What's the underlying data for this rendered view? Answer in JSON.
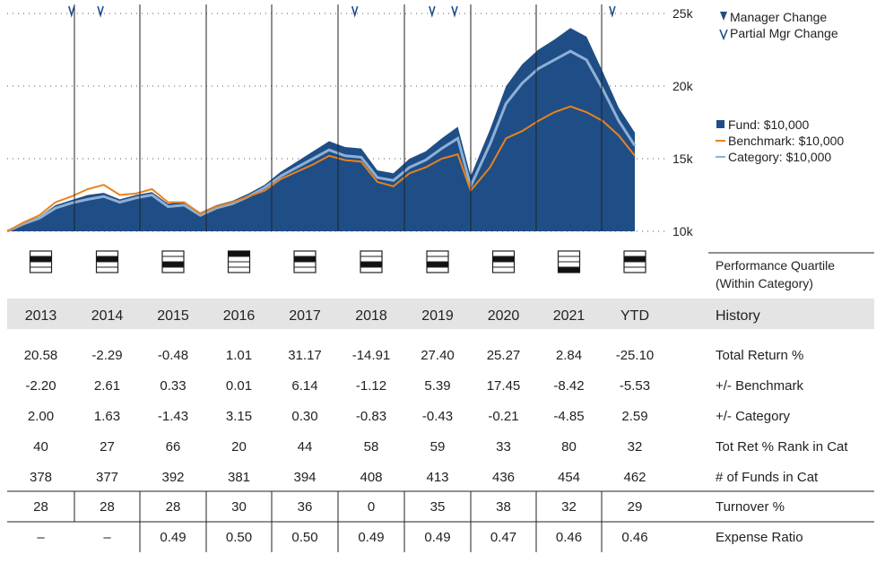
{
  "chart_data": {
    "type": "area",
    "yaxis": {
      "ticks": [
        "25k",
        "20k",
        "15k",
        "10k"
      ],
      "values": [
        25000,
        20000,
        15000,
        10000
      ],
      "ylim": [
        10000,
        25000
      ],
      "gridlines": "dotted"
    },
    "x_range": [
      2013.0,
      2022.75
    ],
    "legend": {
      "manager_change": "Manager Change",
      "partial_mgr_change": "Partial Mgr Change",
      "fund": "Fund: $10,000",
      "benchmark": "Benchmark: $10,000",
      "category": "Category: $10,000"
    },
    "colors": {
      "fund": "#1f4e86",
      "category": "#8eb0d6",
      "benchmark": "#e8821e",
      "grid": "#555555",
      "header_band": "#e4e4e4"
    },
    "partial_manager_changes": [
      2014.0,
      2014.45,
      2018.4,
      2019.6,
      2019.95,
      2022.4
    ],
    "series": [
      {
        "name": "Fund",
        "x": [
          2013.0,
          2013.25,
          2013.5,
          2013.75,
          2014.0,
          2014.25,
          2014.5,
          2014.75,
          2015.0,
          2015.25,
          2015.5,
          2015.75,
          2016.0,
          2016.25,
          2016.5,
          2016.75,
          2017.0,
          2017.25,
          2017.5,
          2017.75,
          2018.0,
          2018.25,
          2018.5,
          2018.75,
          2019.0,
          2019.25,
          2019.5,
          2019.75,
          2020.0,
          2020.2,
          2020.5,
          2020.75,
          2021.0,
          2021.25,
          2021.5,
          2021.75,
          2022.0,
          2022.25,
          2022.5,
          2022.75
        ],
        "values": [
          10000,
          10600,
          11000,
          11800,
          12150,
          12500,
          12650,
          12200,
          12500,
          12700,
          11900,
          12050,
          11300,
          11800,
          12100,
          12600,
          13200,
          14100,
          14800,
          15500,
          16200,
          15800,
          15700,
          14200,
          14000,
          15000,
          15500,
          16400,
          17200,
          13800,
          17000,
          20000,
          21500,
          22500,
          23200,
          24000,
          23400,
          21000,
          18500,
          16800
        ]
      },
      {
        "name": "Category",
        "x": [
          2013.0,
          2013.25,
          2013.5,
          2013.75,
          2014.0,
          2014.25,
          2014.5,
          2014.75,
          2015.0,
          2015.25,
          2015.5,
          2015.75,
          2016.0,
          2016.25,
          2016.5,
          2016.75,
          2017.0,
          2017.25,
          2017.5,
          2017.75,
          2018.0,
          2018.25,
          2018.5,
          2018.75,
          2019.0,
          2019.25,
          2019.5,
          2019.75,
          2020.0,
          2020.2,
          2020.5,
          2020.75,
          2021.0,
          2021.25,
          2021.5,
          2021.75,
          2022.0,
          2022.25,
          2022.5,
          2022.75
        ],
        "values": [
          10000,
          10500,
          10900,
          11600,
          11950,
          12200,
          12400,
          12000,
          12300,
          12500,
          11700,
          11800,
          11100,
          11600,
          11900,
          12400,
          13000,
          13800,
          14400,
          15000,
          15600,
          15200,
          15100,
          13700,
          13500,
          14400,
          14900,
          15700,
          16400,
          13100,
          16000,
          18800,
          20200,
          21200,
          21800,
          22400,
          21800,
          19800,
          17600,
          15900
        ]
      },
      {
        "name": "Benchmark",
        "x": [
          2013.0,
          2013.25,
          2013.5,
          2013.75,
          2014.0,
          2014.25,
          2014.5,
          2014.75,
          2015.0,
          2015.25,
          2015.5,
          2015.75,
          2016.0,
          2016.25,
          2016.5,
          2016.75,
          2017.0,
          2017.25,
          2017.5,
          2017.75,
          2018.0,
          2018.25,
          2018.5,
          2018.75,
          2019.0,
          2019.25,
          2019.5,
          2019.75,
          2020.0,
          2020.2,
          2020.5,
          2020.75,
          2021.0,
          2021.25,
          2021.5,
          2021.75,
          2022.0,
          2022.25,
          2022.5,
          2022.75
        ],
        "values": [
          10000,
          10600,
          11100,
          12000,
          12400,
          12900,
          13200,
          12500,
          12600,
          12900,
          12000,
          12000,
          11200,
          11700,
          12000,
          12400,
          12800,
          13600,
          14100,
          14600,
          15200,
          14900,
          14800,
          13400,
          13100,
          14000,
          14400,
          15000,
          15300,
          12800,
          14400,
          16400,
          16900,
          17600,
          18200,
          18600,
          18200,
          17600,
          16600,
          15200
        ]
      }
    ],
    "quartile_rank": [
      2,
      2,
      3,
      1,
      2,
      3,
      3,
      2,
      4,
      2
    ],
    "quartile_label_1": "Performance Quartile",
    "quartile_label_2": "(Within Category)",
    "table": {
      "header_row_label": "History",
      "columns": [
        "2013",
        "2014",
        "2015",
        "2016",
        "2017",
        "2018",
        "2019",
        "2020",
        "2021",
        "YTD"
      ],
      "rows": [
        {
          "label": "Total Return %",
          "values": [
            "20.58",
            "-2.29",
            "-0.48",
            "1.01",
            "31.17",
            "-14.91",
            "27.40",
            "25.27",
            "2.84",
            "-25.10"
          ]
        },
        {
          "label": "+/- Benchmark",
          "values": [
            "-2.20",
            "2.61",
            "0.33",
            "0.01",
            "6.14",
            "-1.12",
            "5.39",
            "17.45",
            "-8.42",
            "-5.53"
          ]
        },
        {
          "label": "+/- Category",
          "values": [
            "2.00",
            "1.63",
            "-1.43",
            "3.15",
            "0.30",
            "-0.83",
            "-0.43",
            "-0.21",
            "-4.85",
            "2.59"
          ]
        },
        {
          "label": "Tot Ret % Rank in Cat",
          "values": [
            "40",
            "27",
            "66",
            "20",
            "44",
            "58",
            "59",
            "33",
            "80",
            "32"
          ]
        },
        {
          "label": "# of Funds in Cat",
          "values": [
            "378",
            "377",
            "392",
            "381",
            "394",
            "408",
            "413",
            "436",
            "454",
            "462"
          ]
        },
        {
          "label": "Turnover %",
          "values": [
            "28",
            "28",
            "28",
            "30",
            "36",
            "0",
            "35",
            "38",
            "32",
            "29"
          ]
        },
        {
          "label": "Expense Ratio",
          "values": [
            "–",
            "–",
            "0.49",
            "0.50",
            "0.50",
            "0.49",
            "0.49",
            "0.47",
            "0.46",
            "0.46"
          ]
        }
      ]
    }
  }
}
